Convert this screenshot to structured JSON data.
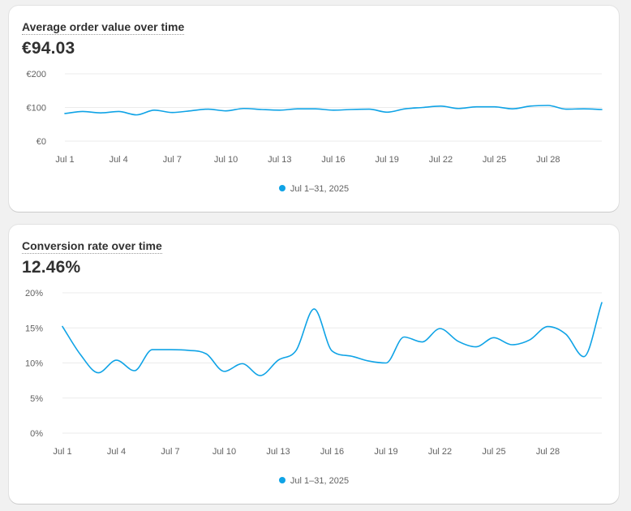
{
  "colors": {
    "series": "#0fa3e6",
    "grid": "#ebebeb",
    "axis_text": "#616161"
  },
  "legend_label": "Jul 1–31, 2025",
  "charts": [
    {
      "title": "Average order value over time",
      "metric": "€94.03"
    },
    {
      "title": "Conversion rate over time",
      "metric": "12.46%"
    }
  ],
  "chart_data": [
    {
      "type": "line",
      "title": "Average order value over time",
      "x": [
        1,
        2,
        3,
        4,
        5,
        6,
        7,
        8,
        9,
        10,
        11,
        12,
        13,
        14,
        15,
        16,
        17,
        18,
        19,
        20,
        21,
        22,
        23,
        24,
        25,
        26,
        27,
        28,
        29,
        30,
        31
      ],
      "x_ticks": [
        "Jul 1",
        "Jul 4",
        "Jul 7",
        "Jul 10",
        "Jul 13",
        "Jul 16",
        "Jul 19",
        "Jul 22",
        "Jul 25",
        "Jul 28"
      ],
      "x_tick_days": [
        1,
        4,
        7,
        10,
        13,
        16,
        19,
        22,
        25,
        28
      ],
      "y_ticks": [
        "€0",
        "€100",
        "€200"
      ],
      "ylim": [
        0,
        200
      ],
      "series": [
        {
          "name": "Jul 1–31, 2025",
          "values": [
            82,
            88,
            84,
            88,
            78,
            92,
            85,
            90,
            95,
            90,
            97,
            94,
            92,
            96,
            96,
            92,
            94,
            95,
            86,
            96,
            100,
            104,
            97,
            102,
            102,
            96,
            104,
            106,
            95,
            96,
            94
          ]
        }
      ],
      "legend": "bottom-center",
      "grid": true
    },
    {
      "type": "line",
      "title": "Conversion rate over time",
      "x": [
        1,
        2,
        3,
        4,
        5,
        6,
        7,
        8,
        9,
        10,
        11,
        12,
        13,
        14,
        15,
        16,
        17,
        18,
        19,
        20,
        21,
        22,
        23,
        24,
        25,
        26,
        27,
        28,
        29,
        30,
        31
      ],
      "x_ticks": [
        "Jul 1",
        "Jul 4",
        "Jul 7",
        "Jul 10",
        "Jul 13",
        "Jul 16",
        "Jul 19",
        "Jul 22",
        "Jul 25",
        "Jul 28"
      ],
      "x_tick_days": [
        1,
        4,
        7,
        10,
        13,
        16,
        19,
        22,
        25,
        28
      ],
      "y_ticks": [
        "0%",
        "5%",
        "10%",
        "15%",
        "20%"
      ],
      "ylim": [
        0,
        20
      ],
      "series": [
        {
          "name": "Jul 1–31, 2025",
          "values": [
            15.2,
            11.2,
            8.6,
            10.4,
            8.9,
            11.9,
            11.9,
            11.8,
            11.3,
            8.8,
            9.9,
            8.2,
            10.4,
            11.8,
            17.7,
            11.7,
            11.0,
            10.3,
            10.0,
            13.7,
            13.0,
            14.9,
            13.1,
            12.3,
            13.6,
            12.6,
            13.3,
            15.2,
            14.1,
            10.9,
            18.6
          ]
        }
      ],
      "legend": "bottom-center",
      "grid": true
    }
  ]
}
